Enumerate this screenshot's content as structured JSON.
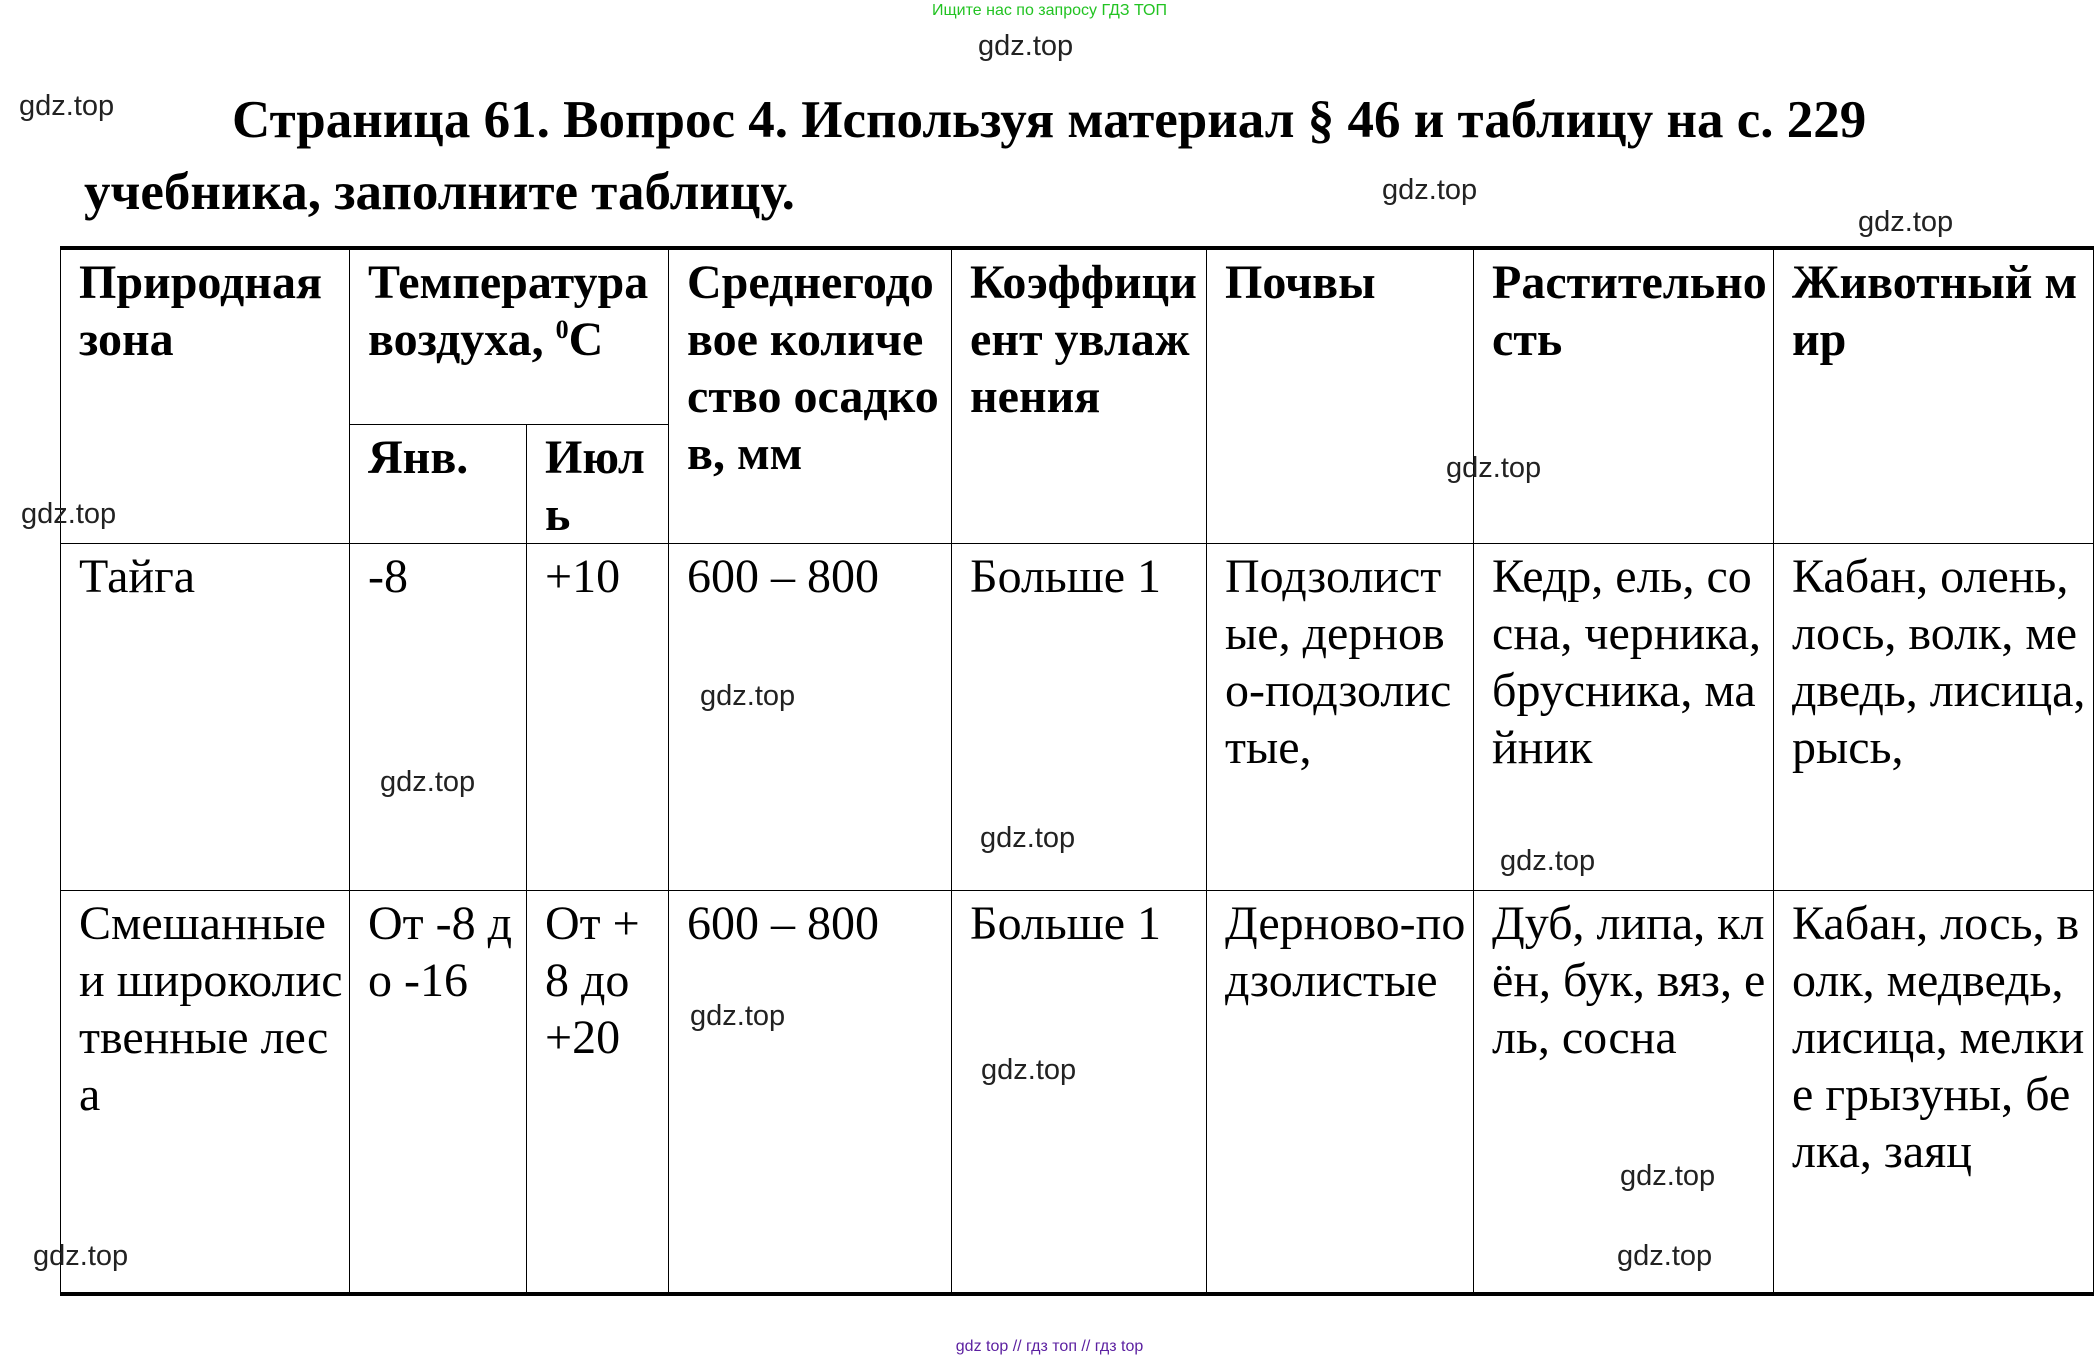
{
  "top_note": "Ищите нас по запросу ГДЗ ТОП",
  "bottom_note": "gdz top  //  гдз топ  //  гдз top",
  "title": "Страница 61. Вопрос 4. Используя материал § 46 и таблицу на с. 229 учебника, заполните таблицу.",
  "watermark": "gdz.top",
  "table": {
    "headers": {
      "zone": "Природная зона",
      "temp": "Температура воздуха, ",
      "temp_sup": "0",
      "temp_unit": "С",
      "jan": "Янв.",
      "jul": "Июль",
      "precip": "Среднегодовое количество осадков, мм",
      "coef": "Коэффициент увлажнения",
      "soils": "Почвы",
      "plants": "Растительность",
      "animals": "Животный мир"
    },
    "rows": [
      {
        "zone": "Тайга",
        "jan": "-8",
        "jul": "+10",
        "precip": "600 – 800",
        "coef": "Больше 1",
        "soils": "Подзолистые, дерново-подзолистые,",
        "plants": "Кедр, ель, сосна, черника, брусника, майник",
        "animals": "Кабан, олень, лось, волк, медведь, лисица, рысь,"
      },
      {
        "zone": "Смешанные и широколиственные леса",
        "jan": "От -8 до -16",
        "jul": "От +8 до +20",
        "precip": "600 – 800",
        "coef": "Больше 1",
        "soils": "Дерново-подзолистые",
        "plants": "Дуб, липа, клён, бук, вяз, ель, сосна",
        "animals": "Кабан, лось, волк, медведь, лисица, мелкие грызуны, белка, заяц"
      }
    ]
  }
}
